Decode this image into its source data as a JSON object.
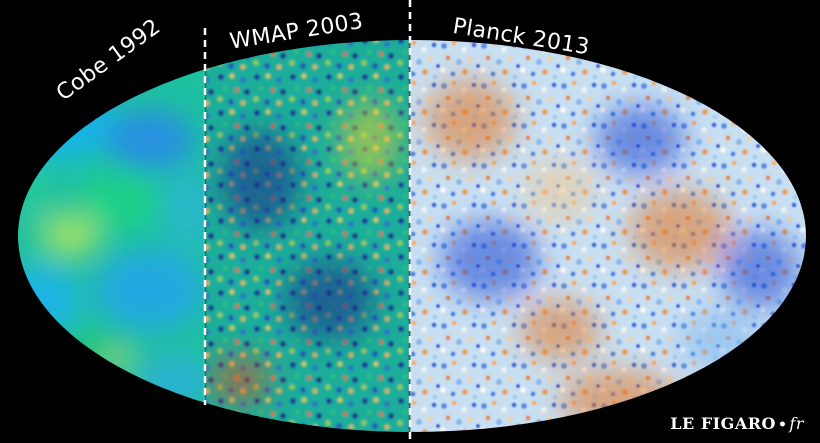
{
  "panels": [
    {
      "label": "Cobe 1992"
    },
    {
      "label": "WMAP 2003"
    },
    {
      "label": "Planck 2013"
    }
  ],
  "credit": {
    "name": "LE FIGARO",
    "separator": "•",
    "suffix": "fr"
  },
  "colors": {
    "background": "#000000",
    "divider": "#ffffff",
    "cobe_palette": [
      "#18b0e8",
      "#14c8b4",
      "#1ec878",
      "#7fd658"
    ],
    "wmap_palette": [
      "#1a2a8c",
      "#2a6cc8",
      "#1fb4a8",
      "#e6d02a",
      "#e0501e"
    ],
    "planck_palette": [
      "#1e46d2",
      "#7ab4ee",
      "#e8eef4",
      "#f0c890",
      "#e07420"
    ]
  }
}
